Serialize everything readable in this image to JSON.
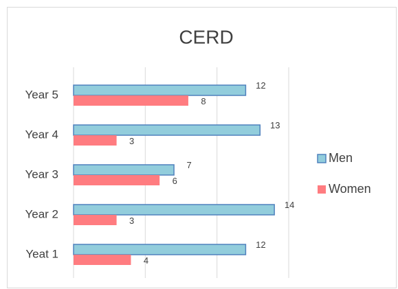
{
  "chart_data": {
    "type": "barh",
    "title": "CERD",
    "categories": [
      "Yeat 1",
      "Year 2",
      "Year 3",
      "Year 4",
      "Year 5"
    ],
    "series": [
      {
        "name": "Men",
        "color": "#92cddc",
        "values": [
          12,
          14,
          7,
          13,
          12
        ]
      },
      {
        "name": "Women",
        "color": "#ff7c80",
        "values": [
          4,
          3,
          6,
          3,
          8
        ]
      }
    ],
    "xlim": [
      0,
      15
    ],
    "xticks": [
      0,
      5,
      10,
      15
    ],
    "grid": true,
    "legend": "right"
  }
}
